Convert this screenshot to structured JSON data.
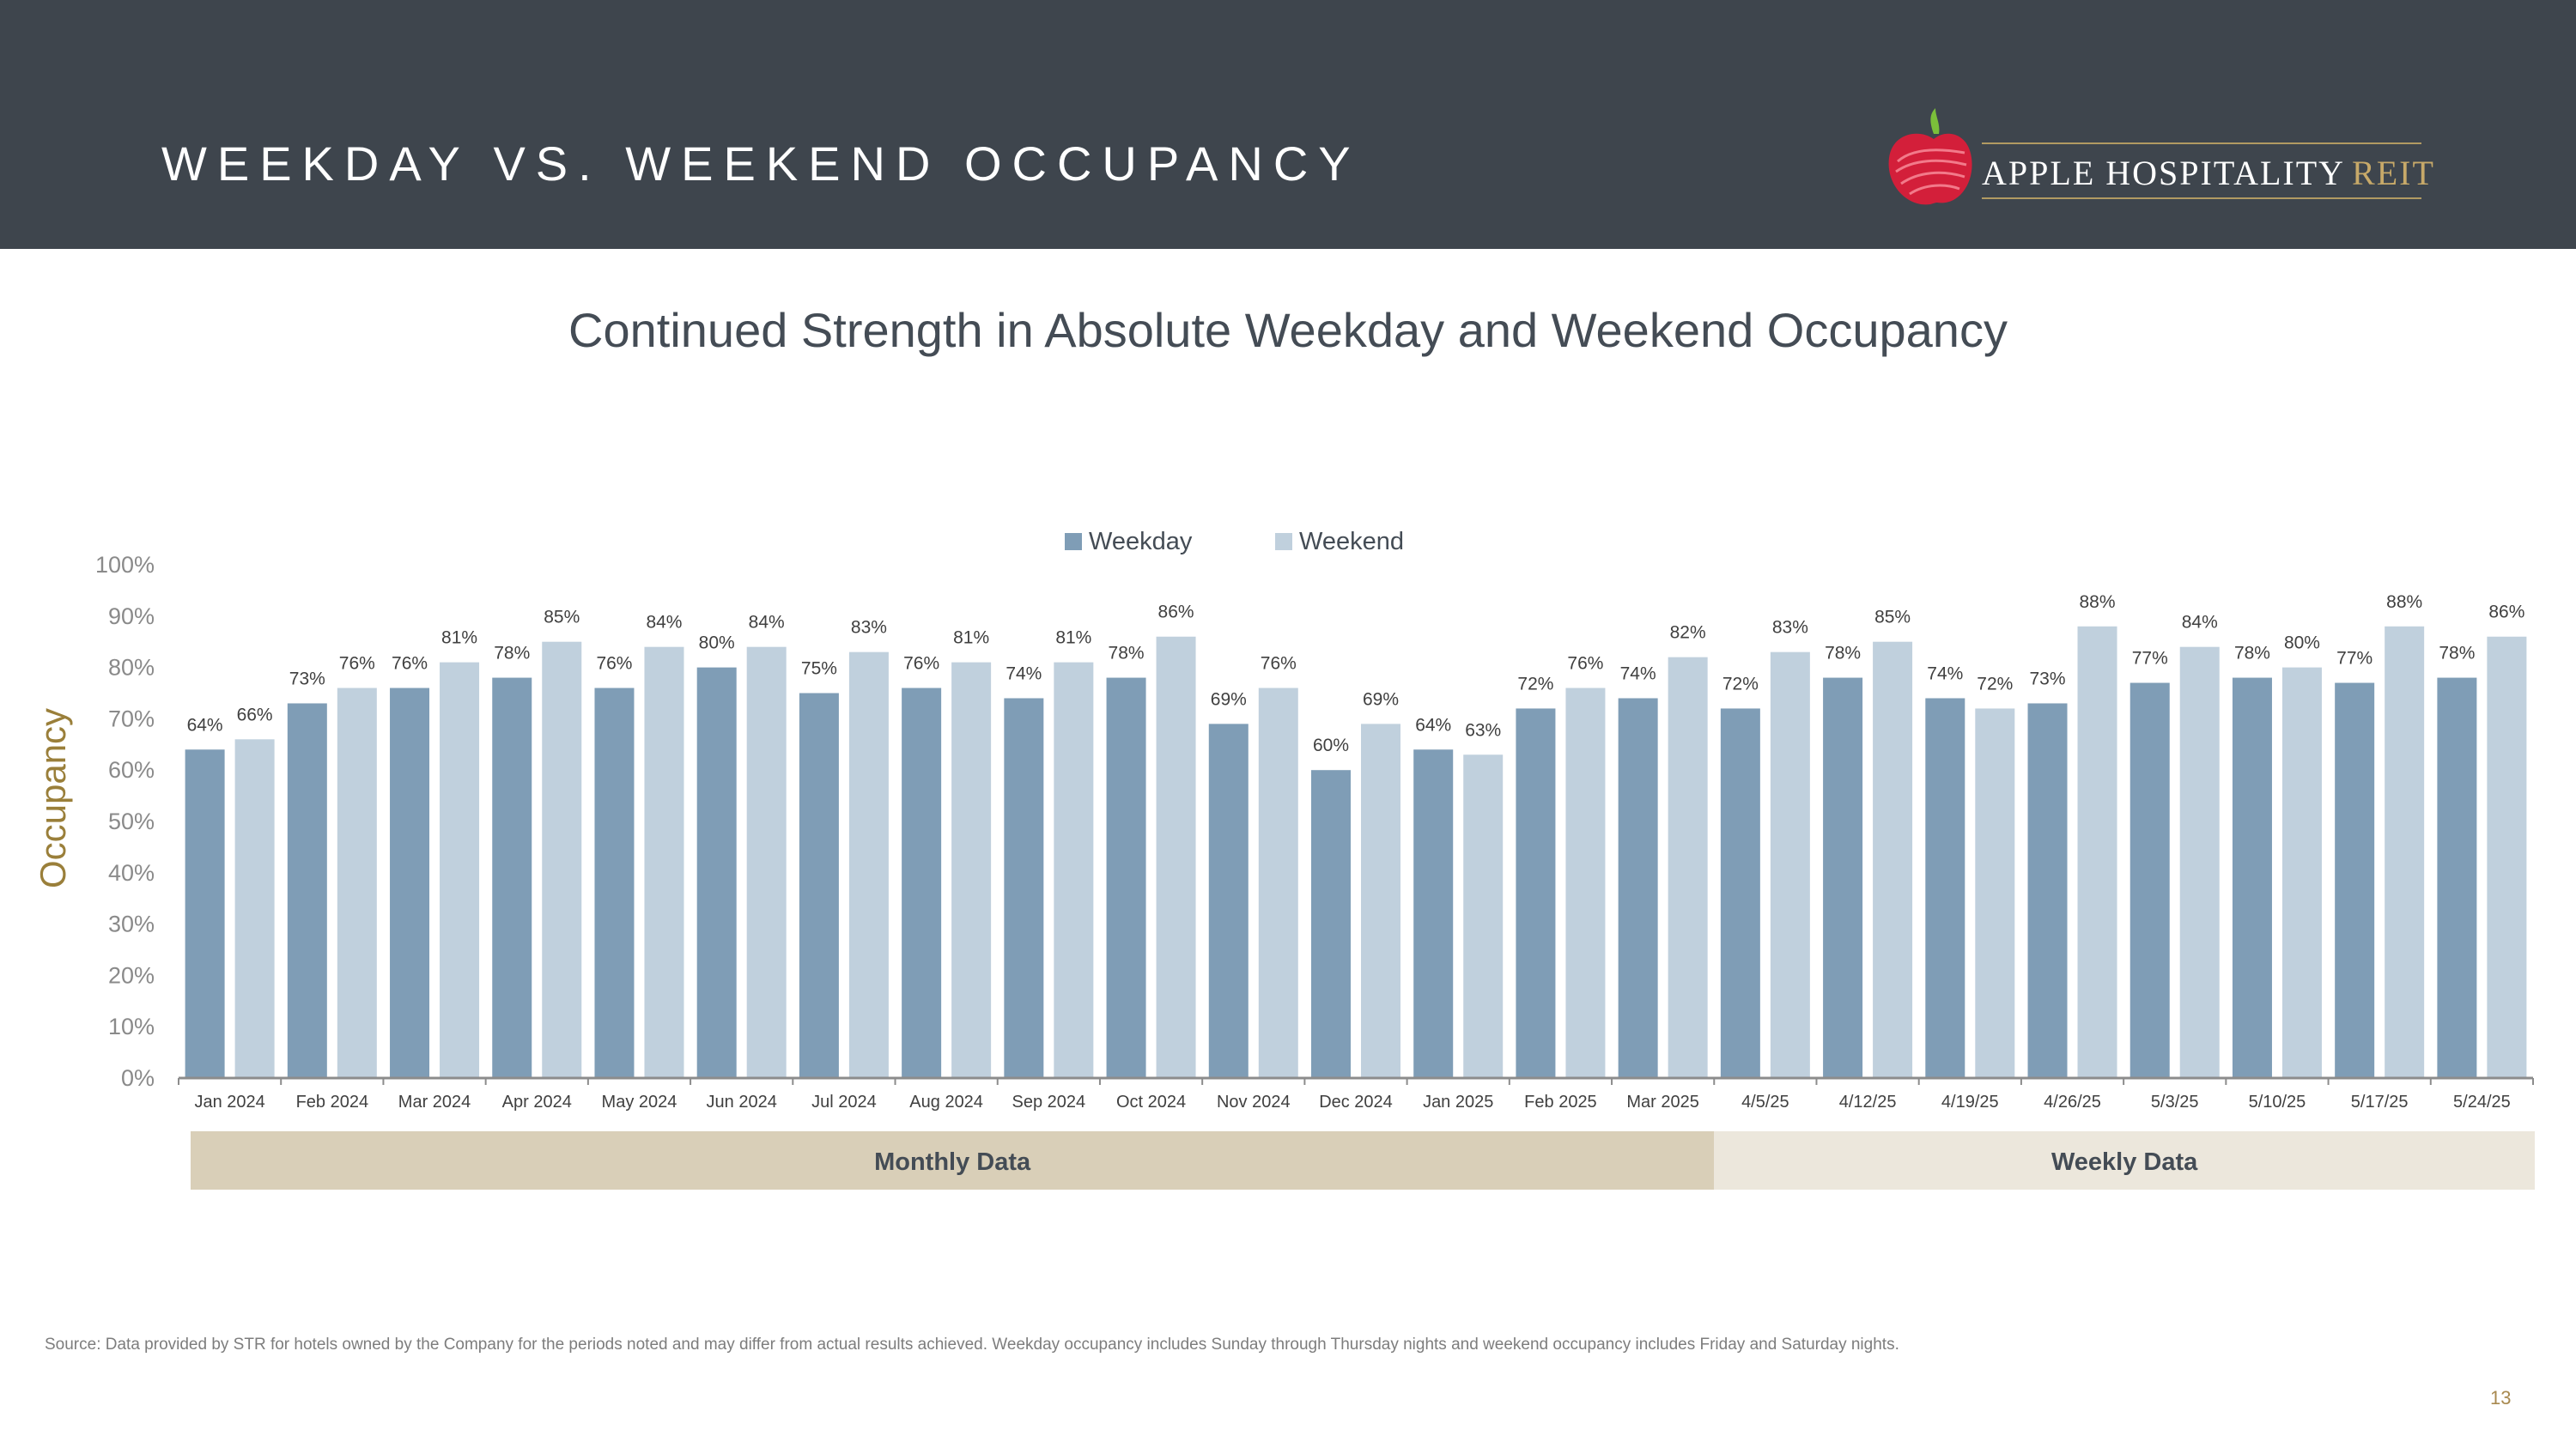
{
  "header": {
    "title": "WEEKDAY VS. WEEKEND OCCUPANCY"
  },
  "logo": {
    "name": "APPLE HOSPITALITY",
    "suffix": "REIT"
  },
  "colors": {
    "header_bg": "#3e454d",
    "weekday": "#7f9db6",
    "weekend": "#c0d0dd",
    "monthly_band": "#d9cfb8",
    "weekly_band": "#ece7dc",
    "ylabel": "#9a7f3a",
    "apple_red": "#d31f3a"
  },
  "chart_data": {
    "type": "bar",
    "title": "Continued Strength in Absolute Weekday and Weekend Occupancy",
    "ylabel": "Occupancy",
    "xlabel": "",
    "ylim": [
      0,
      100
    ],
    "yticks": [
      "0%",
      "10%",
      "20%",
      "30%",
      "40%",
      "50%",
      "60%",
      "70%",
      "80%",
      "90%",
      "100%"
    ],
    "legend_position": "top-center",
    "categories": [
      "Jan 2024",
      "Feb 2024",
      "Mar 2024",
      "Apr 2024",
      "May 2024",
      "Jun 2024",
      "Jul 2024",
      "Aug 2024",
      "Sep 2024",
      "Oct 2024",
      "Nov 2024",
      "Dec 2024",
      "Jan 2025",
      "Feb 2025",
      "Mar 2025",
      "4/5/25",
      "4/12/25",
      "4/19/25",
      "4/26/25",
      "5/3/25",
      "5/10/25",
      "5/17/25",
      "5/24/25"
    ],
    "series": [
      {
        "name": "Weekday",
        "values": [
          64,
          73,
          76,
          78,
          76,
          80,
          75,
          76,
          74,
          78,
          69,
          60,
          64,
          72,
          74,
          72,
          78,
          74,
          73,
          77,
          78,
          77,
          78
        ]
      },
      {
        "name": "Weekend",
        "values": [
          66,
          76,
          81,
          85,
          84,
          84,
          83,
          81,
          81,
          86,
          76,
          69,
          63,
          76,
          82,
          83,
          85,
          72,
          88,
          84,
          80,
          88,
          86
        ]
      }
    ],
    "groups": [
      {
        "label": "Monthly Data",
        "count": 15
      },
      {
        "label": "Weekly Data",
        "count": 8
      }
    ]
  },
  "footer": {
    "source": "Source:  Data provided by STR for hotels owned by the Company for the periods noted and may differ from actual results achieved. Weekday occupancy includes Sunday through Thursday nights and weekend occupancy includes Friday and Saturday nights.",
    "page_number": "13"
  }
}
